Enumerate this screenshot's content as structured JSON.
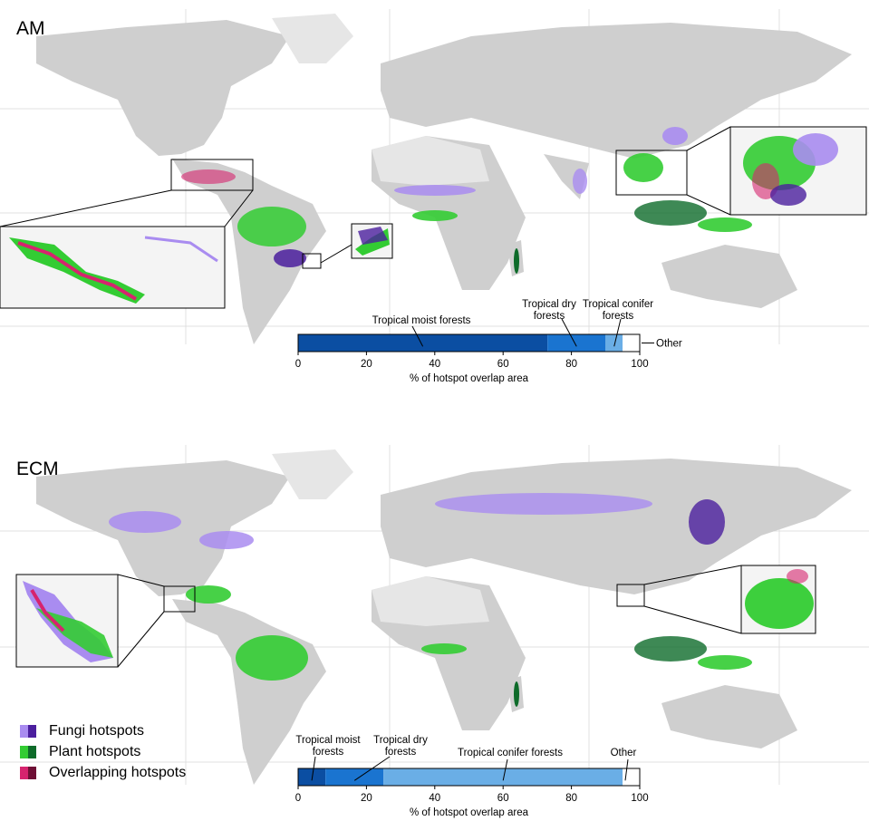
{
  "panels": {
    "am": {
      "label": "AM"
    },
    "ecm": {
      "label": "ECM"
    }
  },
  "legend": [
    {
      "label": "Fungi hotspots",
      "colors": [
        "#a98cf0",
        "#4b1f9e"
      ],
      "icon": "fungi-swatch"
    },
    {
      "label": "Plant hotspots",
      "colors": [
        "#33cc33",
        "#0e6b2a"
      ],
      "icon": "plant-swatch"
    },
    {
      "label": "Overlapping hotspots",
      "colors": [
        "#d6246e",
        "#6e0f35"
      ],
      "icon": "overlap-swatch"
    }
  ],
  "colors": {
    "land": "#cfcfcf",
    "desert": "#e6e6e6",
    "fungi": "#a98cf0",
    "plant": "#33cc33",
    "overlap": "#d6246e",
    "bar_dark": "#0b4ea2",
    "bar_mid": "#1a74d0",
    "bar_light": "#6aaee6"
  },
  "chart_data": [
    {
      "type": "bar",
      "panel": "AM",
      "orientation": "horizontal-stacked",
      "categories": [
        "Tropical moist forests",
        "Tropical dry forests",
        "Tropical conifer forests",
        "Other"
      ],
      "values": [
        73,
        17,
        5,
        5
      ],
      "xlabel": "% of hotspot overlap area",
      "xlim": [
        0,
        100
      ],
      "xticks": [
        "0",
        "20",
        "40",
        "60",
        "80",
        "100"
      ]
    },
    {
      "type": "bar",
      "panel": "ECM",
      "orientation": "horizontal-stacked",
      "categories": [
        "Tropical moist forests",
        "Tropical dry forests",
        "Tropical conifer forests",
        "Other"
      ],
      "values": [
        8,
        17,
        70,
        5
      ],
      "xlabel": "% of hotspot overlap area",
      "xlim": [
        0,
        100
      ],
      "xticks": [
        "0",
        "20",
        "40",
        "60",
        "80",
        "100"
      ]
    }
  ]
}
